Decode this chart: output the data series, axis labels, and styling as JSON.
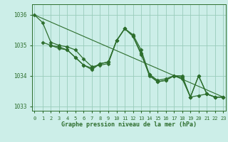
{
  "background_color": "#cceee8",
  "grid_color": "#99ccbb",
  "line_color": "#2d6e2d",
  "marker_color": "#2d6e2d",
  "title": "Graphe pression niveau de la mer (hPa)",
  "ylim": [
    1032.85,
    1036.35
  ],
  "xlim": [
    -0.3,
    23.3
  ],
  "yticks": [
    1033,
    1034,
    1035,
    1036
  ],
  "xticks": [
    0,
    1,
    2,
    3,
    4,
    5,
    6,
    7,
    8,
    9,
    10,
    11,
    12,
    13,
    14,
    15,
    16,
    17,
    18,
    19,
    20,
    21,
    22,
    23
  ],
  "series": [
    {
      "x": [
        0,
        1,
        2,
        3,
        4,
        5,
        6,
        7,
        8,
        9,
        10,
        11,
        12,
        13,
        14,
        15,
        16,
        17,
        18,
        19,
        20,
        21,
        22,
        23
      ],
      "y": [
        1036.0,
        1035.75,
        1035.1,
        1035.0,
        1034.95,
        1034.85,
        1034.55,
        1034.3,
        1034.35,
        1034.4,
        1035.15,
        1035.55,
        1035.35,
        1034.85,
        1034.05,
        1033.85,
        1033.9,
        1034.0,
        1034.0,
        1033.3,
        1033.35,
        1033.4,
        1033.3,
        1033.3
      ],
      "marker": "D",
      "markersize": 2.5,
      "linewidth": 0.9
    },
    {
      "x": [
        1,
        2,
        3,
        4,
        5,
        6,
        7,
        8,
        9,
        10,
        11,
        12,
        13,
        14,
        15,
        16,
        17,
        18,
        19,
        20,
        21,
        22,
        23
      ],
      "y": [
        1035.1,
        1035.0,
        1034.95,
        1034.85,
        1034.6,
        1034.35,
        1034.25,
        1034.4,
        1034.45,
        1035.15,
        1035.55,
        1035.3,
        1034.75,
        1034.0,
        1033.8,
        1033.85,
        1034.0,
        1033.95,
        1033.3,
        1034.0,
        1033.4,
        1033.3,
        1033.3
      ],
      "marker": "D",
      "markersize": 2.5,
      "linewidth": 0.9
    },
    {
      "x": [
        2,
        3,
        4,
        5,
        6,
        7,
        8,
        9,
        10,
        11,
        12,
        13,
        14,
        15,
        16,
        17,
        18,
        19,
        20,
        21,
        22,
        23
      ],
      "y": [
        1035.0,
        1034.9,
        1034.85,
        1034.6,
        1034.35,
        1034.2,
        1034.4,
        1034.45,
        1035.15,
        1035.55,
        1035.3,
        1034.7,
        1034.05,
        1033.8,
        1033.85,
        1034.0,
        1033.9,
        1033.3,
        1034.0,
        1033.4,
        1033.3,
        1033.3
      ],
      "marker": "D",
      "markersize": 2.5,
      "linewidth": 0.9
    },
    {
      "x": [
        0,
        23
      ],
      "y": [
        1036.0,
        1033.3
      ],
      "marker": null,
      "markersize": 0,
      "linewidth": 0.8
    }
  ]
}
